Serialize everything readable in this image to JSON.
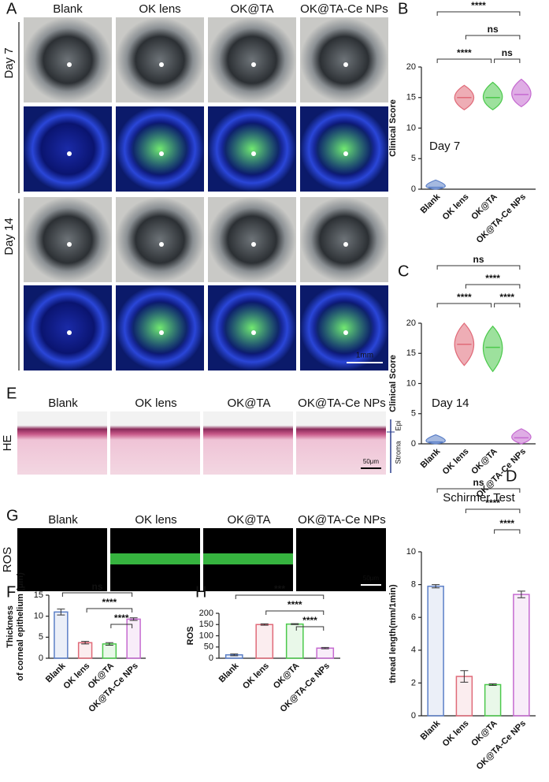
{
  "image_panels": [
    {
      "letter": "A",
      "columns": [
        "Blank",
        "OK lens",
        "OK@TA",
        "OK@TA-Ce NPs"
      ],
      "rows": [
        "Day 7",
        "Day 14"
      ],
      "scale_bar": "1mm"
    },
    {
      "letter": "E",
      "columns": [
        "Blank",
        "OK lens",
        "OK@TA",
        "OK@TA-Ce NPs"
      ],
      "rows": [
        "HE"
      ],
      "layers": [
        "Epi",
        "Stroma"
      ],
      "scale_bar": "50μm"
    },
    {
      "letter": "G",
      "columns": [
        "Blank",
        "OK lens",
        "OK@TA",
        "OK@TA-Ce NPs"
      ],
      "rows": [
        "ROS"
      ],
      "scale_bar": "50μm"
    }
  ],
  "chart_data": [
    {
      "type": "violin",
      "letter": "B",
      "ylabel": [
        "Clinical Score"
      ],
      "annotation": "Day 7",
      "categories": [
        "Blank",
        "OK lens",
        "OK@TA",
        "OK@TA-Ce NPs"
      ],
      "colors": [
        "#5b7fc7",
        "#e06a78",
        "#4cc94c",
        "#c56ad0"
      ],
      "medians": [
        0.3,
        15,
        15,
        15.5
      ],
      "mins": [
        0,
        13,
        13,
        13.5
      ],
      "maxs": [
        1.5,
        17,
        17.5,
        18
      ],
      "ylim": [
        0,
        20
      ],
      "yticks": [
        0,
        5,
        10,
        15,
        20
      ],
      "comparisons": [
        {
          "between": [
            "Blank",
            "OK@TA"
          ],
          "label": "****"
        },
        {
          "between": [
            "OK@TA",
            "OK@TA-Ce NPs"
          ],
          "label": "ns"
        },
        {
          "between": [
            "OK lens",
            "OK@TA-Ce NPs"
          ],
          "label": "ns"
        },
        {
          "between": [
            "Blank",
            "OK@TA-Ce NPs"
          ],
          "label": "****"
        }
      ]
    },
    {
      "type": "violin",
      "letter": "C",
      "ylabel": [
        "Clinical Score"
      ],
      "annotation": "Day 14",
      "categories": [
        "Blank",
        "OK lens",
        "OK@TA",
        "OK@TA-Ce NPs"
      ],
      "colors": [
        "#5b7fc7",
        "#e06a78",
        "#4cc94c",
        "#c56ad0"
      ],
      "medians": [
        0.3,
        16.5,
        16,
        1
      ],
      "mins": [
        0,
        13,
        12,
        0
      ],
      "maxs": [
        1.5,
        20,
        19.5,
        2.5
      ],
      "ylim": [
        0,
        20
      ],
      "yticks": [
        0,
        5,
        10,
        15,
        20
      ],
      "comparisons": [
        {
          "between": [
            "Blank",
            "OK@TA"
          ],
          "label": "****"
        },
        {
          "between": [
            "OK@TA",
            "OK@TA-Ce NPs"
          ],
          "label": "****"
        },
        {
          "between": [
            "OK lens",
            "OK@TA-Ce NPs"
          ],
          "label": "****"
        },
        {
          "between": [
            "Blank",
            "OK@TA-Ce NPs"
          ],
          "label": "ns"
        }
      ]
    },
    {
      "type": "bar",
      "letter": "D",
      "title": "Schirmer Test",
      "ylabel": [
        "thread length(mm/1min)"
      ],
      "categories": [
        "Blank",
        "OK lens",
        "OK@TA",
        "OK@TA-Ce NPs"
      ],
      "colors": [
        "#5b7fc7",
        "#e06a78",
        "#4cc94c",
        "#c56ad0"
      ],
      "values": [
        7.9,
        2.4,
        1.9,
        7.4
      ],
      "errors": [
        0.1,
        0.35,
        0.05,
        0.2
      ],
      "ylim": [
        0,
        10
      ],
      "yticks": [
        0,
        2,
        4,
        6,
        8,
        10
      ],
      "comparisons": [
        {
          "between": [
            "OK@TA",
            "OK@TA-Ce NPs"
          ],
          "label": "****"
        },
        {
          "between": [
            "OK lens",
            "OK@TA-Ce NPs"
          ],
          "label": "****"
        },
        {
          "between": [
            "Blank",
            "OK@TA-Ce NPs"
          ],
          "label": "ns"
        }
      ]
    },
    {
      "type": "bar",
      "letter": "F",
      "ylabel": [
        "Thickness",
        "of corneal epithelium  (μm)"
      ],
      "categories": [
        "Blank",
        "OK lens",
        "OK@TA",
        "OK@TA-Ce NPs"
      ],
      "colors": [
        "#5b7fc7",
        "#e06a78",
        "#4cc94c",
        "#c56ad0"
      ],
      "values": [
        11,
        3.7,
        3.4,
        9.3
      ],
      "errors": [
        0.7,
        0.3,
        0.3,
        0.3
      ],
      "ylim": [
        0,
        15
      ],
      "yticks": [
        0,
        5,
        10,
        15
      ],
      "comparisons": [
        {
          "between": [
            "OK@TA",
            "OK@TA-Ce NPs"
          ],
          "label": "****"
        },
        {
          "between": [
            "OK lens",
            "OK@TA-Ce NPs"
          ],
          "label": "****"
        },
        {
          "between": [
            "Blank",
            "OK@TA-Ce NPs"
          ],
          "label": "ns"
        }
      ]
    },
    {
      "type": "bar",
      "letter": "H",
      "ylabel": [
        "ROS"
      ],
      "categories": [
        "Blank",
        "OK lens",
        "OK@TA",
        "OK@TA-Ce NPs"
      ],
      "colors": [
        "#5b7fc7",
        "#e06a78",
        "#4cc94c",
        "#c56ad0"
      ],
      "values": [
        15,
        150,
        152,
        45
      ],
      "errors": [
        4,
        3,
        2,
        3
      ],
      "ylim": [
        0,
        200
      ],
      "yticks": [
        0,
        50,
        100,
        150,
        200
      ],
      "comparisons": [
        {
          "between": [
            "OK@TA",
            "OK@TA-Ce NPs"
          ],
          "label": "****"
        },
        {
          "between": [
            "OK lens",
            "OK@TA-Ce NPs"
          ],
          "label": "****"
        },
        {
          "between": [
            "Blank",
            "OK@TA-Ce NPs"
          ],
          "label": "***"
        }
      ]
    }
  ]
}
